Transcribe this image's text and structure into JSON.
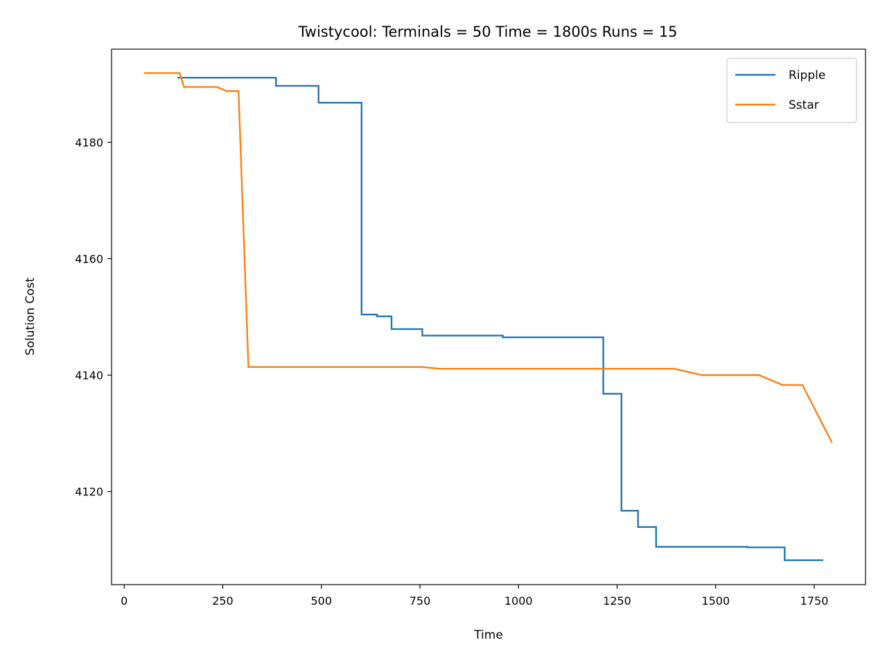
{
  "chart_data": {
    "type": "line",
    "title": "Twistycool:  Terminals = 50  Time = 1800s  Runs = 15",
    "xlabel": "Time",
    "ylabel": "Solution Cost",
    "xlim": [
      -32,
      1880
    ],
    "ylim": [
      4104,
      4196
    ],
    "xticks": [
      0,
      250,
      500,
      750,
      1000,
      1250,
      1500,
      1750
    ],
    "yticks": [
      4120,
      4140,
      4160,
      4180
    ],
    "grid": false,
    "legend_position": "upper right",
    "series": [
      {
        "name": "Ripple",
        "color": "#1f77b4",
        "step": true,
        "x": [
          135,
          385,
          493,
          602,
          641,
          678,
          756,
          960,
          1215,
          1261,
          1303,
          1349,
          1580,
          1675,
          1773
        ],
        "y": [
          4191.1,
          4189.7,
          4186.8,
          4150.4,
          4150.1,
          4147.9,
          4146.8,
          4146.5,
          4136.8,
          4116.7,
          4113.9,
          4110.5,
          4110.4,
          4108.2,
          4108.2
        ]
      },
      {
        "name": "Sstar",
        "color": "#ff7f0e",
        "step": false,
        "x": [
          50,
          140,
          152,
          235,
          260,
          290,
          315,
          755,
          800,
          1395,
          1465,
          1610,
          1670,
          1720,
          1795
        ],
        "y": [
          4191.9,
          4191.9,
          4189.5,
          4189.5,
          4188.8,
          4188.8,
          4141.4,
          4141.4,
          4141.1,
          4141.1,
          4140.0,
          4140.0,
          4138.3,
          4138.3,
          4128.4
        ]
      }
    ]
  }
}
